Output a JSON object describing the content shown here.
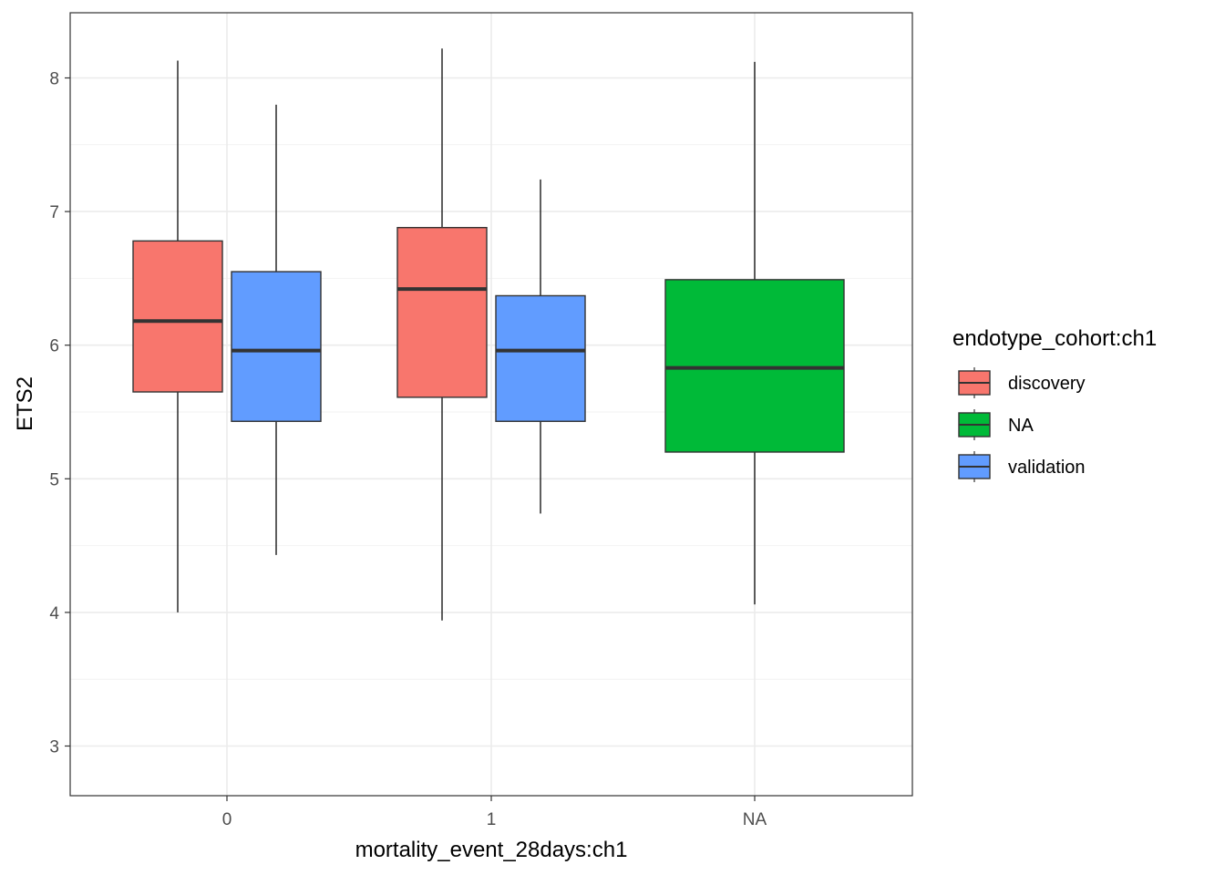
{
  "chart_data": {
    "type": "boxplot",
    "xlabel": "mortality_event_28days:ch1",
    "ylabel": "ETS2",
    "categories": [
      "0",
      "1",
      "NA"
    ],
    "ylim": [
      2.65,
      8.45
    ],
    "yticks": [
      3,
      4,
      5,
      6,
      7,
      8
    ],
    "grid": true,
    "legend": {
      "title": "endotype_cohort:ch1",
      "position": "right",
      "entries": [
        {
          "label": "discovery",
          "color": "#F8766D"
        },
        {
          "label": "NA",
          "color": "#00BA38"
        },
        {
          "label": "validation",
          "color": "#619CFF"
        }
      ]
    },
    "series": [
      {
        "name": "discovery",
        "color": "#F8766D",
        "boxes": [
          {
            "category": "0",
            "min": 4.0,
            "q1": 5.65,
            "median": 6.18,
            "q3": 6.78,
            "max": 8.13
          },
          {
            "category": "1",
            "min": 3.94,
            "q1": 5.61,
            "median": 6.42,
            "q3": 6.88,
            "max": 8.22
          }
        ]
      },
      {
        "name": "validation",
        "color": "#619CFF",
        "boxes": [
          {
            "category": "0",
            "min": 4.43,
            "q1": 5.43,
            "median": 5.96,
            "q3": 6.55,
            "max": 7.8
          },
          {
            "category": "1",
            "min": 4.74,
            "q1": 5.43,
            "median": 5.96,
            "q3": 6.37,
            "max": 7.24
          }
        ]
      },
      {
        "name": "NA",
        "color": "#00BA38",
        "boxes": [
          {
            "category": "NA",
            "min": 4.06,
            "q1": 5.2,
            "median": 5.83,
            "q3": 6.49,
            "max": 8.12
          }
        ]
      }
    ]
  }
}
